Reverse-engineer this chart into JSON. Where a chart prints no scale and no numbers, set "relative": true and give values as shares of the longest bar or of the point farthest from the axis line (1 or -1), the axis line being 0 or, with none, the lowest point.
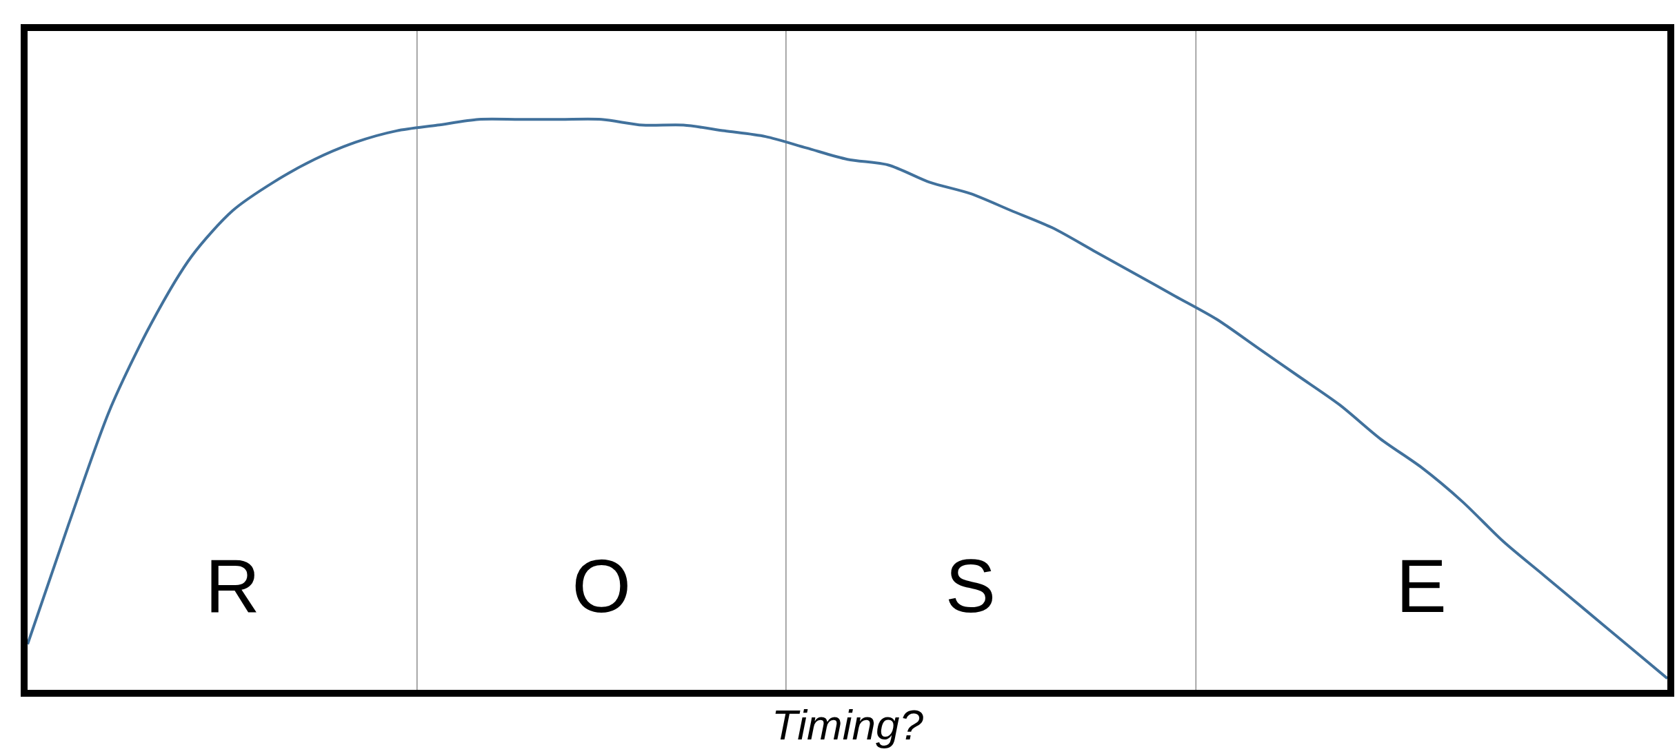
{
  "chart_data": {
    "type": "line",
    "relative": true,
    "xlabel": "Timing?",
    "categories": [
      null,
      null,
      null,
      null,
      null,
      "R",
      null,
      null,
      null,
      null,
      null,
      null,
      null,
      null,
      "O",
      null,
      null,
      null,
      null,
      null,
      null,
      null,
      null,
      "S",
      null,
      null,
      null,
      null,
      null,
      null,
      null,
      null,
      null,
      null,
      "E",
      null,
      null,
      null,
      null,
      null,
      null
    ],
    "series": [
      {
        "color": "#41719c",
        "values": [
          0.08,
          0.29,
          0.49,
          0.64,
          0.76,
          0.84,
          0.89,
          0.93,
          0.96,
          0.98,
          0.99,
          1.0,
          1.0,
          1.0,
          1.0,
          0.99,
          0.99,
          0.98,
          0.97,
          0.95,
          0.93,
          0.92,
          0.89,
          0.87,
          0.84,
          0.81,
          0.77,
          0.73,
          0.69,
          0.65,
          0.6,
          0.55,
          0.5,
          0.44,
          0.39,
          0.33,
          0.26,
          0.2,
          0.14,
          0.08,
          0.02
        ]
      }
    ],
    "grid": false,
    "legend": false,
    "marker": "none",
    "line_style": "solid"
  }
}
